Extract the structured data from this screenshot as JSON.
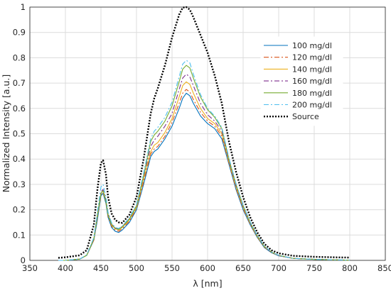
{
  "chart_data": {
    "type": "line",
    "title": "",
    "xlabel": "λ [nm]",
    "ylabel": "Normalized Intensity [a.u.]",
    "xlim": [
      350,
      850
    ],
    "ylim": [
      0,
      1
    ],
    "xticks": [
      "350",
      "400",
      "450",
      "500",
      "550",
      "600",
      "650",
      "700",
      "750",
      "800",
      "850"
    ],
    "yticks": [
      "0",
      "0.1",
      "0.2",
      "0.3",
      "0.4",
      "0.5",
      "0.6",
      "0.7",
      "0.8",
      "0.9",
      "1"
    ],
    "grid": true,
    "legend_position": "top-right",
    "x": [
      390,
      400,
      420,
      430,
      440,
      445,
      450,
      453,
      457,
      460,
      465,
      470,
      475,
      480,
      490,
      500,
      510,
      520,
      525,
      530,
      540,
      550,
      560,
      565,
      570,
      575,
      580,
      590,
      600,
      610,
      620,
      630,
      640,
      650,
      660,
      670,
      680,
      690,
      700,
      720,
      750,
      780,
      800
    ],
    "series": [
      {
        "name": "100 mg/dl",
        "color": "#0072BD",
        "dash": "",
        "values": [
          0,
          0,
          0.005,
          0.02,
          0.08,
          0.16,
          0.255,
          0.265,
          0.225,
          0.17,
          0.13,
          0.115,
          0.11,
          0.12,
          0.15,
          0.2,
          0.3,
          0.41,
          0.43,
          0.44,
          0.48,
          0.53,
          0.6,
          0.64,
          0.66,
          0.65,
          0.62,
          0.57,
          0.54,
          0.52,
          0.48,
          0.38,
          0.28,
          0.2,
          0.14,
          0.09,
          0.05,
          0.03,
          0.018,
          0.008,
          0.004,
          0.002,
          0.001
        ]
      },
      {
        "name": "120 mg/dl",
        "color": "#D95319",
        "dash": "7,3,2,3",
        "values": [
          0,
          0,
          0.005,
          0.02,
          0.08,
          0.17,
          0.26,
          0.27,
          0.23,
          0.175,
          0.135,
          0.12,
          0.115,
          0.125,
          0.155,
          0.205,
          0.31,
          0.42,
          0.44,
          0.45,
          0.49,
          0.545,
          0.62,
          0.66,
          0.675,
          0.665,
          0.635,
          0.585,
          0.55,
          0.53,
          0.49,
          0.385,
          0.285,
          0.205,
          0.143,
          0.092,
          0.052,
          0.031,
          0.019,
          0.008,
          0.004,
          0.002,
          0.001
        ]
      },
      {
        "name": "140 mg/dl",
        "color": "#EDB120",
        "dash": "",
        "values": [
          0,
          0,
          0.005,
          0.02,
          0.085,
          0.175,
          0.265,
          0.275,
          0.235,
          0.18,
          0.14,
          0.125,
          0.12,
          0.13,
          0.16,
          0.21,
          0.32,
          0.43,
          0.455,
          0.465,
          0.505,
          0.56,
          0.645,
          0.69,
          0.705,
          0.695,
          0.66,
          0.6,
          0.56,
          0.54,
          0.5,
          0.39,
          0.29,
          0.21,
          0.146,
          0.094,
          0.053,
          0.032,
          0.019,
          0.008,
          0.004,
          0.002,
          0.001
        ]
      },
      {
        "name": "160 mg/dl",
        "color": "#7E2F8E",
        "dash": "7,3,2,3",
        "values": [
          0,
          0,
          0.005,
          0.02,
          0.085,
          0.18,
          0.27,
          0.28,
          0.24,
          0.185,
          0.145,
          0.128,
          0.124,
          0.134,
          0.165,
          0.215,
          0.33,
          0.45,
          0.475,
          0.49,
          0.53,
          0.58,
          0.675,
          0.72,
          0.735,
          0.725,
          0.69,
          0.62,
          0.575,
          0.55,
          0.51,
          0.395,
          0.295,
          0.213,
          0.148,
          0.096,
          0.054,
          0.032,
          0.019,
          0.008,
          0.004,
          0.002,
          0.001
        ]
      },
      {
        "name": "180 mg/dl",
        "color": "#77AC30",
        "dash": "",
        "values": [
          0,
          0,
          0.005,
          0.02,
          0.085,
          0.18,
          0.265,
          0.275,
          0.235,
          0.18,
          0.142,
          0.126,
          0.122,
          0.132,
          0.163,
          0.215,
          0.335,
          0.47,
          0.495,
          0.51,
          0.55,
          0.61,
          0.705,
          0.755,
          0.77,
          0.76,
          0.72,
          0.645,
          0.595,
          0.565,
          0.52,
          0.4,
          0.3,
          0.216,
          0.15,
          0.097,
          0.055,
          0.033,
          0.02,
          0.008,
          0.004,
          0.002,
          0.001
        ]
      },
      {
        "name": "200 mg/dl",
        "color": "#4DBEEE",
        "dash": "7,3,2,3",
        "values": [
          0,
          0,
          0.005,
          0.022,
          0.09,
          0.19,
          0.29,
          0.3,
          0.25,
          0.19,
          0.148,
          0.13,
          0.126,
          0.136,
          0.168,
          0.22,
          0.345,
          0.48,
          0.51,
          0.525,
          0.565,
          0.625,
          0.725,
          0.775,
          0.79,
          0.78,
          0.735,
          0.655,
          0.6,
          0.57,
          0.525,
          0.405,
          0.303,
          0.218,
          0.152,
          0.098,
          0.056,
          0.033,
          0.02,
          0.008,
          0.004,
          0.002,
          0.001
        ]
      },
      {
        "name": "Source",
        "color": "#000000",
        "dash": "2,2",
        "values": [
          0.01,
          0.012,
          0.02,
          0.04,
          0.14,
          0.28,
          0.385,
          0.395,
          0.34,
          0.25,
          0.185,
          0.16,
          0.15,
          0.148,
          0.18,
          0.25,
          0.4,
          0.58,
          0.64,
          0.68,
          0.77,
          0.88,
          0.97,
          0.998,
          1.0,
          0.99,
          0.96,
          0.89,
          0.82,
          0.73,
          0.62,
          0.47,
          0.35,
          0.25,
          0.17,
          0.11,
          0.065,
          0.04,
          0.028,
          0.018,
          0.014,
          0.012,
          0.011
        ]
      }
    ]
  }
}
